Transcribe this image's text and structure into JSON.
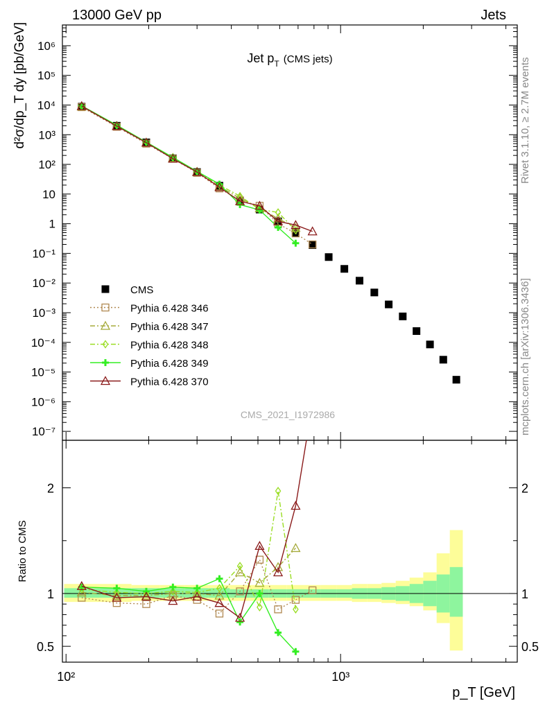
{
  "header": {
    "left": "13000 GeV pp",
    "right": "Jets",
    "side_top": "Rivet 3.1.10, ≥ 2.7M events",
    "side_bottom": "mcplots.cern.ch [arXiv:1306.3436]"
  },
  "chart_data": {
    "type": "line",
    "title_main": "Jet p",
    "title_sub": "T",
    "title_suffix": "(CMS jets)",
    "analysis_label": "CMS_2021_I1972986",
    "ylabel_main": "d²σ/dp_T dy [pb/GeV]",
    "ylabel_ratio": "Ratio to CMS",
    "xlabel": "p_T [GeV]",
    "xscale": "log",
    "yscale_main": "log",
    "xlim": [
      97,
      4400
    ],
    "ylim_main": [
      5e-08,
      5000000.0
    ],
    "ylim_ratio": [
      0.35,
      2.45
    ],
    "x_tick_labels": [
      "10²",
      "10³"
    ],
    "y_tick_labels_main": [
      "10⁻⁷",
      "10⁻⁶",
      "10⁻⁵",
      "10⁻⁴",
      "10⁻³",
      "10⁻²",
      "10⁻¹",
      "1",
      "10",
      "10²",
      "10³",
      "10⁴",
      "10⁵",
      "10⁶"
    ],
    "y_tick_labels_ratio": [
      "0.5",
      "1",
      "2"
    ],
    "legend_position": "left-middle",
    "cms": {
      "name": "CMS",
      "color": "#000000",
      "x": [
        114,
        153,
        196,
        245,
        300,
        362,
        430,
        507,
        592,
        686,
        790,
        905,
        1032,
        1172,
        1327,
        1497,
        1684,
        1890,
        2116,
        2366,
        2640,
        2941,
        3273
      ],
      "y": [
        8800,
        2000,
        550,
        160,
        55,
        19,
        6,
        3,
        1.2,
        0.5,
        0.19,
        0.075,
        0.03,
        0.012,
        0.0048,
        0.0019,
        0.00075,
        0.00024,
        8.5e-05,
        2.6e-05,
        5.5e-06,
        null,
        null
      ],
      "band_inner": [
        0.96,
        0.96,
        0.96,
        0.96,
        0.96,
        0.96,
        0.96,
        0.96,
        0.96,
        0.96,
        0.96,
        0.96,
        0.96,
        0.95,
        0.95,
        0.94,
        0.93,
        0.91,
        0.88,
        0.82,
        0.78
      ],
      "band_inner_hi": [
        1.05,
        1.05,
        1.05,
        1.05,
        1.05,
        1.05,
        1.04,
        1.04,
        1.04,
        1.04,
        1.04,
        1.04,
        1.04,
        1.05,
        1.05,
        1.06,
        1.07,
        1.09,
        1.12,
        1.18,
        1.25
      ],
      "band_outer": [
        0.92,
        0.92,
        0.93,
        0.93,
        0.93,
        0.93,
        0.93,
        0.93,
        0.93,
        0.93,
        0.93,
        0.93,
        0.93,
        0.92,
        0.92,
        0.91,
        0.9,
        0.88,
        0.84,
        0.72,
        0.46
      ],
      "band_outer_hi": [
        1.09,
        1.09,
        1.08,
        1.08,
        1.08,
        1.08,
        1.08,
        1.08,
        1.08,
        1.08,
        1.08,
        1.08,
        1.08,
        1.09,
        1.09,
        1.1,
        1.12,
        1.15,
        1.2,
        1.38,
        1.6
      ]
    },
    "series": [
      {
        "name": "Pythia 6.428 346",
        "color": "#b08850",
        "marker": "square-open",
        "dash": "2,3",
        "x": [
          114,
          153,
          196,
          245,
          300,
          362,
          430,
          507,
          592,
          686,
          790
        ],
        "y": [
          8500,
          1850,
          500,
          155,
          52,
          15.5,
          6.1,
          4.0,
          1.0,
          0.47,
          0.2
        ],
        "ratio": [
          0.96,
          0.91,
          0.9,
          0.98,
          0.94,
          0.81,
          1.02,
          1.32,
          0.85,
          0.94,
          1.03
        ]
      },
      {
        "name": "Pythia 6.428 347",
        "color": "#a5aa3a",
        "marker": "triangle-open",
        "dash": "7,3,2,3",
        "x": [
          114,
          153,
          196,
          245,
          300,
          362,
          430,
          507,
          592,
          686
        ],
        "y": [
          8900,
          1950,
          540,
          165,
          56,
          18,
          7.2,
          3.3,
          1.5,
          0.72
        ],
        "ratio": [
          1.01,
          0.98,
          0.98,
          1.0,
          1.0,
          0.98,
          1.2,
          1.1,
          1.25,
          1.43
        ]
      },
      {
        "name": "Pythia 6.428 348",
        "color": "#99dd22",
        "marker": "diamond-open",
        "dash": "7,3,2,3",
        "x": [
          114,
          153,
          196,
          245,
          300,
          362,
          430,
          507,
          592,
          686
        ],
        "y": [
          9100,
          2050,
          560,
          170,
          57,
          20,
          8.5,
          3.0,
          2.4,
          0.6
        ],
        "ratio": [
          1.04,
          1.01,
          1.0,
          1.02,
          1.01,
          1.05,
          1.26,
          0.87,
          1.97,
          0.85
        ]
      },
      {
        "name": "Pythia 6.428 349",
        "color": "#33ee22",
        "marker": "cross",
        "dash": "",
        "x": [
          114,
          153,
          196,
          245,
          300,
          362,
          430,
          507,
          592,
          686
        ],
        "y": [
          9400,
          2100,
          560,
          172,
          58,
          21.5,
          4.4,
          2.9,
          0.75,
          0.22
        ],
        "ratio": [
          1.06,
          1.05,
          1.02,
          1.06,
          1.05,
          1.14,
          0.73,
          1.0,
          0.63,
          0.45
        ]
      },
      {
        "name": "Pythia 6.428 370",
        "color": "#8a1a1a",
        "marker": "triangle-open",
        "dash": "",
        "x": [
          114,
          153,
          196,
          245,
          300,
          362,
          430,
          507,
          592,
          686,
          790
        ],
        "y": [
          9200,
          1950,
          540,
          155,
          55,
          17,
          5.7,
          4.0,
          1.2,
          0.9,
          0.55
        ],
        "ratio": [
          1.07,
          0.96,
          0.97,
          0.93,
          0.97,
          0.91,
          0.77,
          1.45,
          1.2,
          1.83,
          2.8
        ]
      }
    ]
  }
}
